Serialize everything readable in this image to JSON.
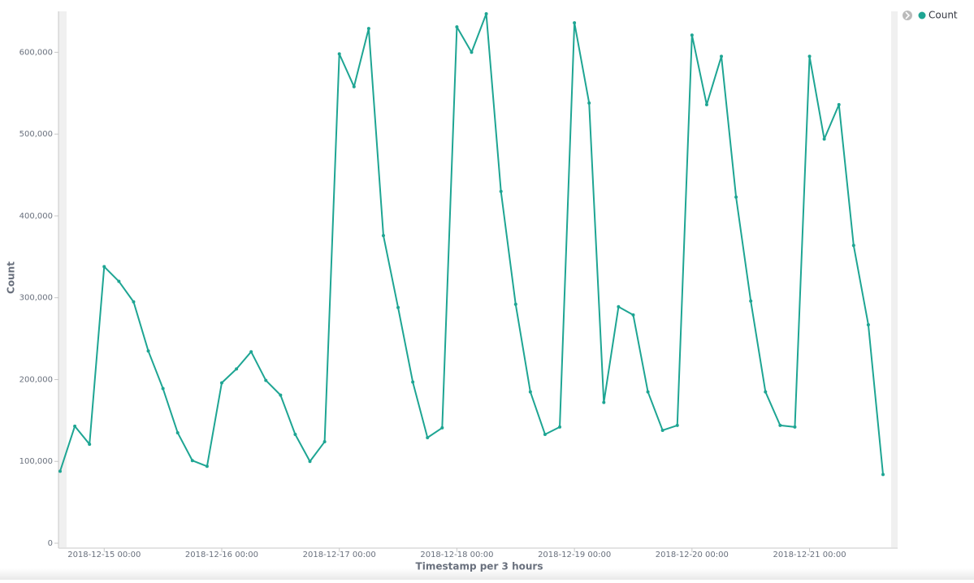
{
  "chart_data": {
    "type": "line",
    "x_label": "Timestamp per 3 hours",
    "y_label": "Count",
    "x": [
      "2018-12-14 15:00",
      "2018-12-14 18:00",
      "2018-12-14 21:00",
      "2018-12-15 00:00",
      "2018-12-15 03:00",
      "2018-12-15 06:00",
      "2018-12-15 09:00",
      "2018-12-15 12:00",
      "2018-12-15 15:00",
      "2018-12-15 18:00",
      "2018-12-15 21:00",
      "2018-12-16 00:00",
      "2018-12-16 03:00",
      "2018-12-16 06:00",
      "2018-12-16 09:00",
      "2018-12-16 12:00",
      "2018-12-16 15:00",
      "2018-12-16 18:00",
      "2018-12-16 21:00",
      "2018-12-17 00:00",
      "2018-12-17 03:00",
      "2018-12-17 06:00",
      "2018-12-17 09:00",
      "2018-12-17 12:00",
      "2018-12-17 15:00",
      "2018-12-17 18:00",
      "2018-12-17 21:00",
      "2018-12-18 00:00",
      "2018-12-18 03:00",
      "2018-12-18 06:00",
      "2018-12-18 09:00",
      "2018-12-18 12:00",
      "2018-12-18 15:00",
      "2018-12-18 18:00",
      "2018-12-18 21:00",
      "2018-12-19 00:00",
      "2018-12-19 03:00",
      "2018-12-19 06:00",
      "2018-12-19 09:00",
      "2018-12-19 12:00",
      "2018-12-19 15:00",
      "2018-12-19 18:00",
      "2018-12-19 21:00",
      "2018-12-20 00:00",
      "2018-12-20 03:00",
      "2018-12-20 06:00",
      "2018-12-20 09:00",
      "2018-12-20 12:00",
      "2018-12-20 15:00",
      "2018-12-20 18:00",
      "2018-12-20 21:00",
      "2018-12-21 00:00",
      "2018-12-21 03:00",
      "2018-12-21 06:00",
      "2018-12-21 09:00",
      "2018-12-21 12:00",
      "2018-12-21 15:00"
    ],
    "series": [
      {
        "name": "Count",
        "color": "#1ea593",
        "values": [
          88000,
          143000,
          121000,
          338000,
          320000,
          295000,
          235000,
          189000,
          135000,
          101000,
          94000,
          196000,
          213000,
          234000,
          199000,
          181000,
          133000,
          100000,
          124000,
          598000,
          558000,
          629000,
          376000,
          288000,
          197000,
          129000,
          141000,
          631000,
          600000,
          647000,
          430000,
          292000,
          185000,
          133000,
          142000,
          636000,
          538000,
          172000,
          289000,
          279000,
          185000,
          138000,
          144000,
          621000,
          536000,
          595000,
          423000,
          296000,
          185000,
          144000,
          142000,
          595000,
          494000,
          536000,
          364000,
          267000,
          84000
        ]
      }
    ],
    "xlim": [
      "2018-12-14 15:00",
      "2018-12-21 18:00"
    ],
    "xticks": [
      "2018-12-15 00:00",
      "2018-12-16 00:00",
      "2018-12-17 00:00",
      "2018-12-18 00:00",
      "2018-12-19 00:00",
      "2018-12-20 00:00",
      "2018-12-21 00:00"
    ],
    "ylim": [
      0,
      650000
    ],
    "yticks": [
      0,
      {
        "value": 100000,
        "label": "100,000"
      },
      {
        "value": 200000,
        "label": "200,000"
      },
      {
        "value": 300000,
        "label": "300,000"
      },
      {
        "value": 400000,
        "label": "400,000"
      },
      {
        "value": 500000,
        "label": "500,000"
      },
      {
        "value": 600000,
        "label": "600,000"
      }
    ],
    "legend": "top-right"
  }
}
